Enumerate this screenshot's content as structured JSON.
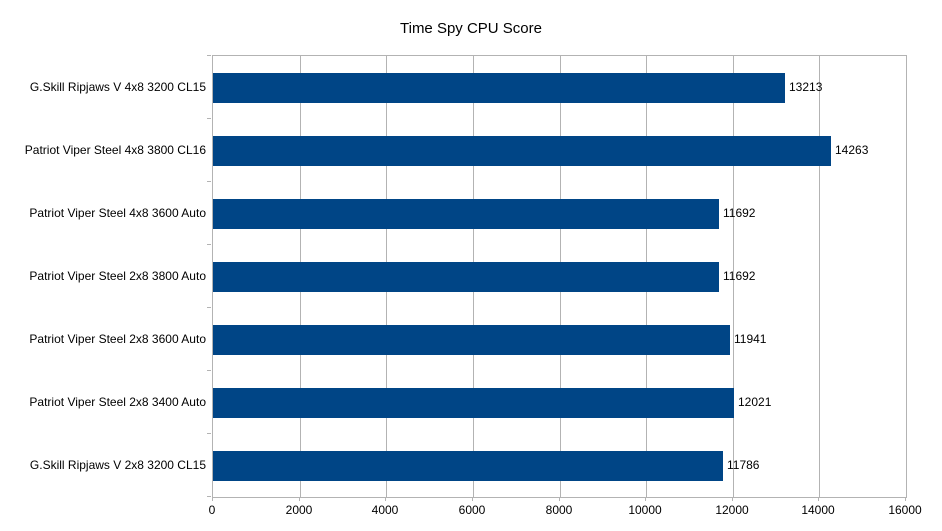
{
  "chart_data": {
    "type": "bar",
    "orientation": "horizontal",
    "title": "Time Spy CPU Score",
    "categories": [
      "G.Skill Ripjaws V 4x8 3200 CL15",
      "Patriot Viper Steel 4x8 3800 CL16",
      "Patriot Viper Steel 4x8 3600 Auto",
      "Patriot Viper Steel 2x8 3800 Auto",
      "Patriot Viper Steel 2x8 3600 Auto",
      "Patriot Viper Steel 2x8 3400 Auto",
      "G.Skill Ripjaws V 2x8 3200 CL15"
    ],
    "values": [
      13213,
      14263,
      11692,
      11692,
      11941,
      12021,
      11786
    ],
    "value_labels": [
      "13213",
      "14263",
      "11692",
      "11692",
      "11941",
      "12021",
      "11786"
    ],
    "x_ticks": [
      0,
      2000,
      4000,
      6000,
      8000,
      10000,
      12000,
      14000,
      16000
    ],
    "x_tick_labels": [
      "0",
      "2000",
      "4000",
      "6000",
      "8000",
      "10000",
      "12000",
      "14000",
      "16000"
    ],
    "xlim": [
      0,
      16000
    ],
    "xlabel": "",
    "ylabel": "",
    "grid": true,
    "legend": false,
    "colors": {
      "bar": "#004586",
      "grid": "#b3b3b3",
      "axis": "#b3b3b3",
      "text": "#000000",
      "background": "#ffffff"
    }
  }
}
